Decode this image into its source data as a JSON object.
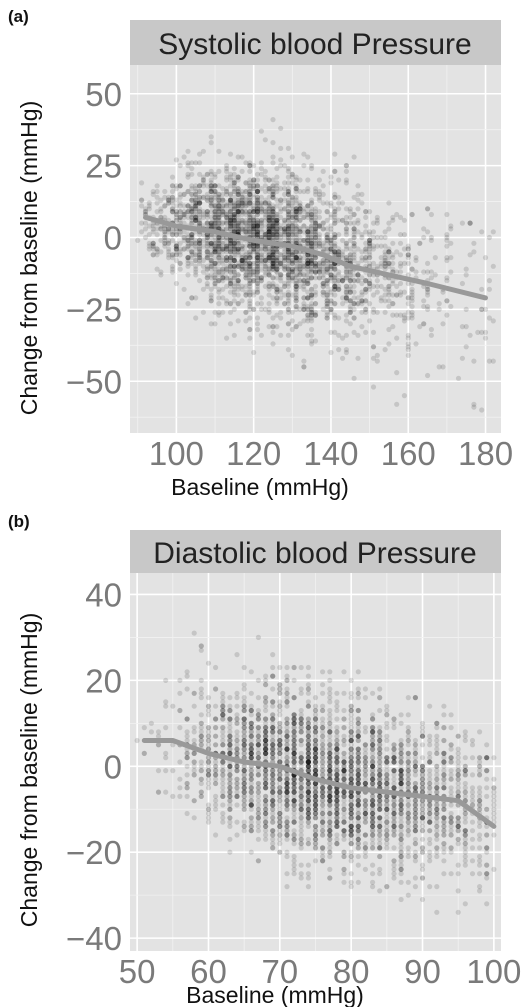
{
  "chart_data": [
    {
      "type": "scatter",
      "panel_label": "(a)",
      "title": "Systolic blood Pressure",
      "xlabel": "Baseline (mmHg)",
      "ylabel": "Change from baseline (mmHg)",
      "xlim": [
        88,
        184
      ],
      "ylim": [
        -68,
        60
      ],
      "x_ticks": [
        100,
        120,
        140,
        160,
        180
      ],
      "y_ticks": [
        50,
        25,
        0,
        -25,
        -50
      ],
      "x_tick_labels": [
        "100",
        "120",
        "140",
        "160",
        "180"
      ],
      "y_tick_labels": [
        "50",
        "25",
        "0",
        "−25",
        "−50"
      ],
      "grid": true,
      "trend": {
        "x": [
          92,
          100,
          110,
          120,
          130,
          138,
          145,
          155,
          165,
          180
        ],
        "y": [
          7,
          4,
          2,
          -1,
          -3,
          -6,
          -10,
          -13,
          -16,
          -21
        ]
      },
      "cloud": [
        {
          "x": 92,
          "mean": 5,
          "sd": 6,
          "lo": -8,
          "hi": 28,
          "n": 30
        },
        {
          "x": 96,
          "mean": 4,
          "sd": 8,
          "lo": -15,
          "hi": 36,
          "n": 60
        },
        {
          "x": 100,
          "mean": 4,
          "sd": 9,
          "lo": -22,
          "hi": 28,
          "n": 120
        },
        {
          "x": 105,
          "mean": 3,
          "sd": 10,
          "lo": -28,
          "hi": 30,
          "n": 200
        },
        {
          "x": 110,
          "mean": 2,
          "sd": 11,
          "lo": -30,
          "hi": 38,
          "n": 300
        },
        {
          "x": 115,
          "mean": 0,
          "sd": 12,
          "lo": -35,
          "hi": 40,
          "n": 360
        },
        {
          "x": 120,
          "mean": -1,
          "sd": 12,
          "lo": -40,
          "hi": 42,
          "n": 380
        },
        {
          "x": 125,
          "mean": -2,
          "sd": 12,
          "lo": -40,
          "hi": 44,
          "n": 360
        },
        {
          "x": 130,
          "mean": -3,
          "sd": 12,
          "lo": -42,
          "hi": 48,
          "n": 330
        },
        {
          "x": 135,
          "mean": -5,
          "sd": 12,
          "lo": -45,
          "hi": 35,
          "n": 280
        },
        {
          "x": 140,
          "mean": -7,
          "sd": 12,
          "lo": -48,
          "hi": 30,
          "n": 220
        },
        {
          "x": 145,
          "mean": -10,
          "sd": 12,
          "lo": -52,
          "hi": 28,
          "n": 160
        },
        {
          "x": 150,
          "mean": -12,
          "sd": 12,
          "lo": -55,
          "hi": 25,
          "n": 110
        },
        {
          "x": 155,
          "mean": -13,
          "sd": 12,
          "lo": -58,
          "hi": 20,
          "n": 80
        },
        {
          "x": 160,
          "mean": -15,
          "sd": 13,
          "lo": -66,
          "hi": 15,
          "n": 60
        },
        {
          "x": 165,
          "mean": -16,
          "sd": 13,
          "lo": -50,
          "hi": 10,
          "n": 35
        },
        {
          "x": 170,
          "mean": -17,
          "sd": 14,
          "lo": -55,
          "hi": 8,
          "n": 25
        },
        {
          "x": 175,
          "mean": -19,
          "sd": 15,
          "lo": -60,
          "hi": 5,
          "n": 20
        },
        {
          "x": 180,
          "mean": -20,
          "sd": 15,
          "lo": -62,
          "hi": 2,
          "n": 20
        }
      ]
    },
    {
      "type": "scatter",
      "panel_label": "(b)",
      "title": "Diastolic blood Pressure",
      "xlabel": "Baseline (mmHg)",
      "ylabel": "Change from baseline (mmHg)",
      "xlim": [
        49,
        101
      ],
      "ylim": [
        -43,
        45
      ],
      "x_ticks": [
        50,
        60,
        70,
        80,
        90,
        100
      ],
      "y_ticks": [
        40,
        20,
        0,
        -20,
        -40
      ],
      "x_tick_labels": [
        "50",
        "60",
        "70",
        "80",
        "90",
        "100"
      ],
      "y_tick_labels": [
        "40",
        "20",
        "0",
        "−20",
        "−40"
      ],
      "grid": true,
      "trend": {
        "x": [
          51,
          55,
          60,
          65,
          70,
          75,
          80,
          85,
          90,
          95,
          100
        ],
        "y": [
          6,
          6,
          3,
          1,
          0,
          -3,
          -5,
          -6,
          -7,
          -8,
          -14
        ]
      },
      "cloud": [
        {
          "x": 51,
          "mean": 4,
          "sd": 4,
          "lo": -2,
          "hi": 10,
          "n": 8
        },
        {
          "x": 55,
          "mean": 5,
          "sd": 7,
          "lo": -8,
          "hi": 32,
          "n": 30
        },
        {
          "x": 58,
          "mean": 4,
          "sd": 8,
          "lo": -12,
          "hi": 40,
          "n": 70
        },
        {
          "x": 61,
          "mean": 3,
          "sd": 8,
          "lo": -16,
          "hi": 30,
          "n": 130
        },
        {
          "x": 64,
          "mean": 2,
          "sd": 8,
          "lo": -20,
          "hi": 36,
          "n": 200
        },
        {
          "x": 67,
          "mean": 1,
          "sd": 9,
          "lo": -22,
          "hi": 30,
          "n": 260
        },
        {
          "x": 70,
          "mean": 0,
          "sd": 9,
          "lo": -26,
          "hi": 32,
          "n": 320
        },
        {
          "x": 73,
          "mean": -2,
          "sd": 9,
          "lo": -28,
          "hi": 28,
          "n": 340
        },
        {
          "x": 76,
          "mean": -3,
          "sd": 9,
          "lo": -30,
          "hi": 26,
          "n": 340
        },
        {
          "x": 79,
          "mean": -4,
          "sd": 9,
          "lo": -32,
          "hi": 24,
          "n": 320
        },
        {
          "x": 82,
          "mean": -5,
          "sd": 9,
          "lo": -33,
          "hi": 22,
          "n": 290
        },
        {
          "x": 85,
          "mean": -6,
          "sd": 9,
          "lo": -35,
          "hi": 18,
          "n": 250
        },
        {
          "x": 88,
          "mean": -7,
          "sd": 9,
          "lo": -38,
          "hi": 16,
          "n": 210
        },
        {
          "x": 91,
          "mean": -7,
          "sd": 9,
          "lo": -40,
          "hi": 14,
          "n": 170
        },
        {
          "x": 94,
          "mean": -8,
          "sd": 9,
          "lo": -40,
          "hi": 12,
          "n": 130
        },
        {
          "x": 97,
          "mean": -10,
          "sd": 9,
          "lo": -38,
          "hi": 8,
          "n": 90
        },
        {
          "x": 100,
          "mean": -14,
          "sd": 10,
          "lo": -37,
          "hi": 2,
          "n": 70
        }
      ]
    }
  ],
  "colors": {
    "panel_background": "#e3e3e3",
    "strip_background": "#c8c8c8",
    "gridline": "#ffffff",
    "point": "#000000",
    "trend_line": "#999999",
    "tick_label": "#7a7a7a"
  }
}
